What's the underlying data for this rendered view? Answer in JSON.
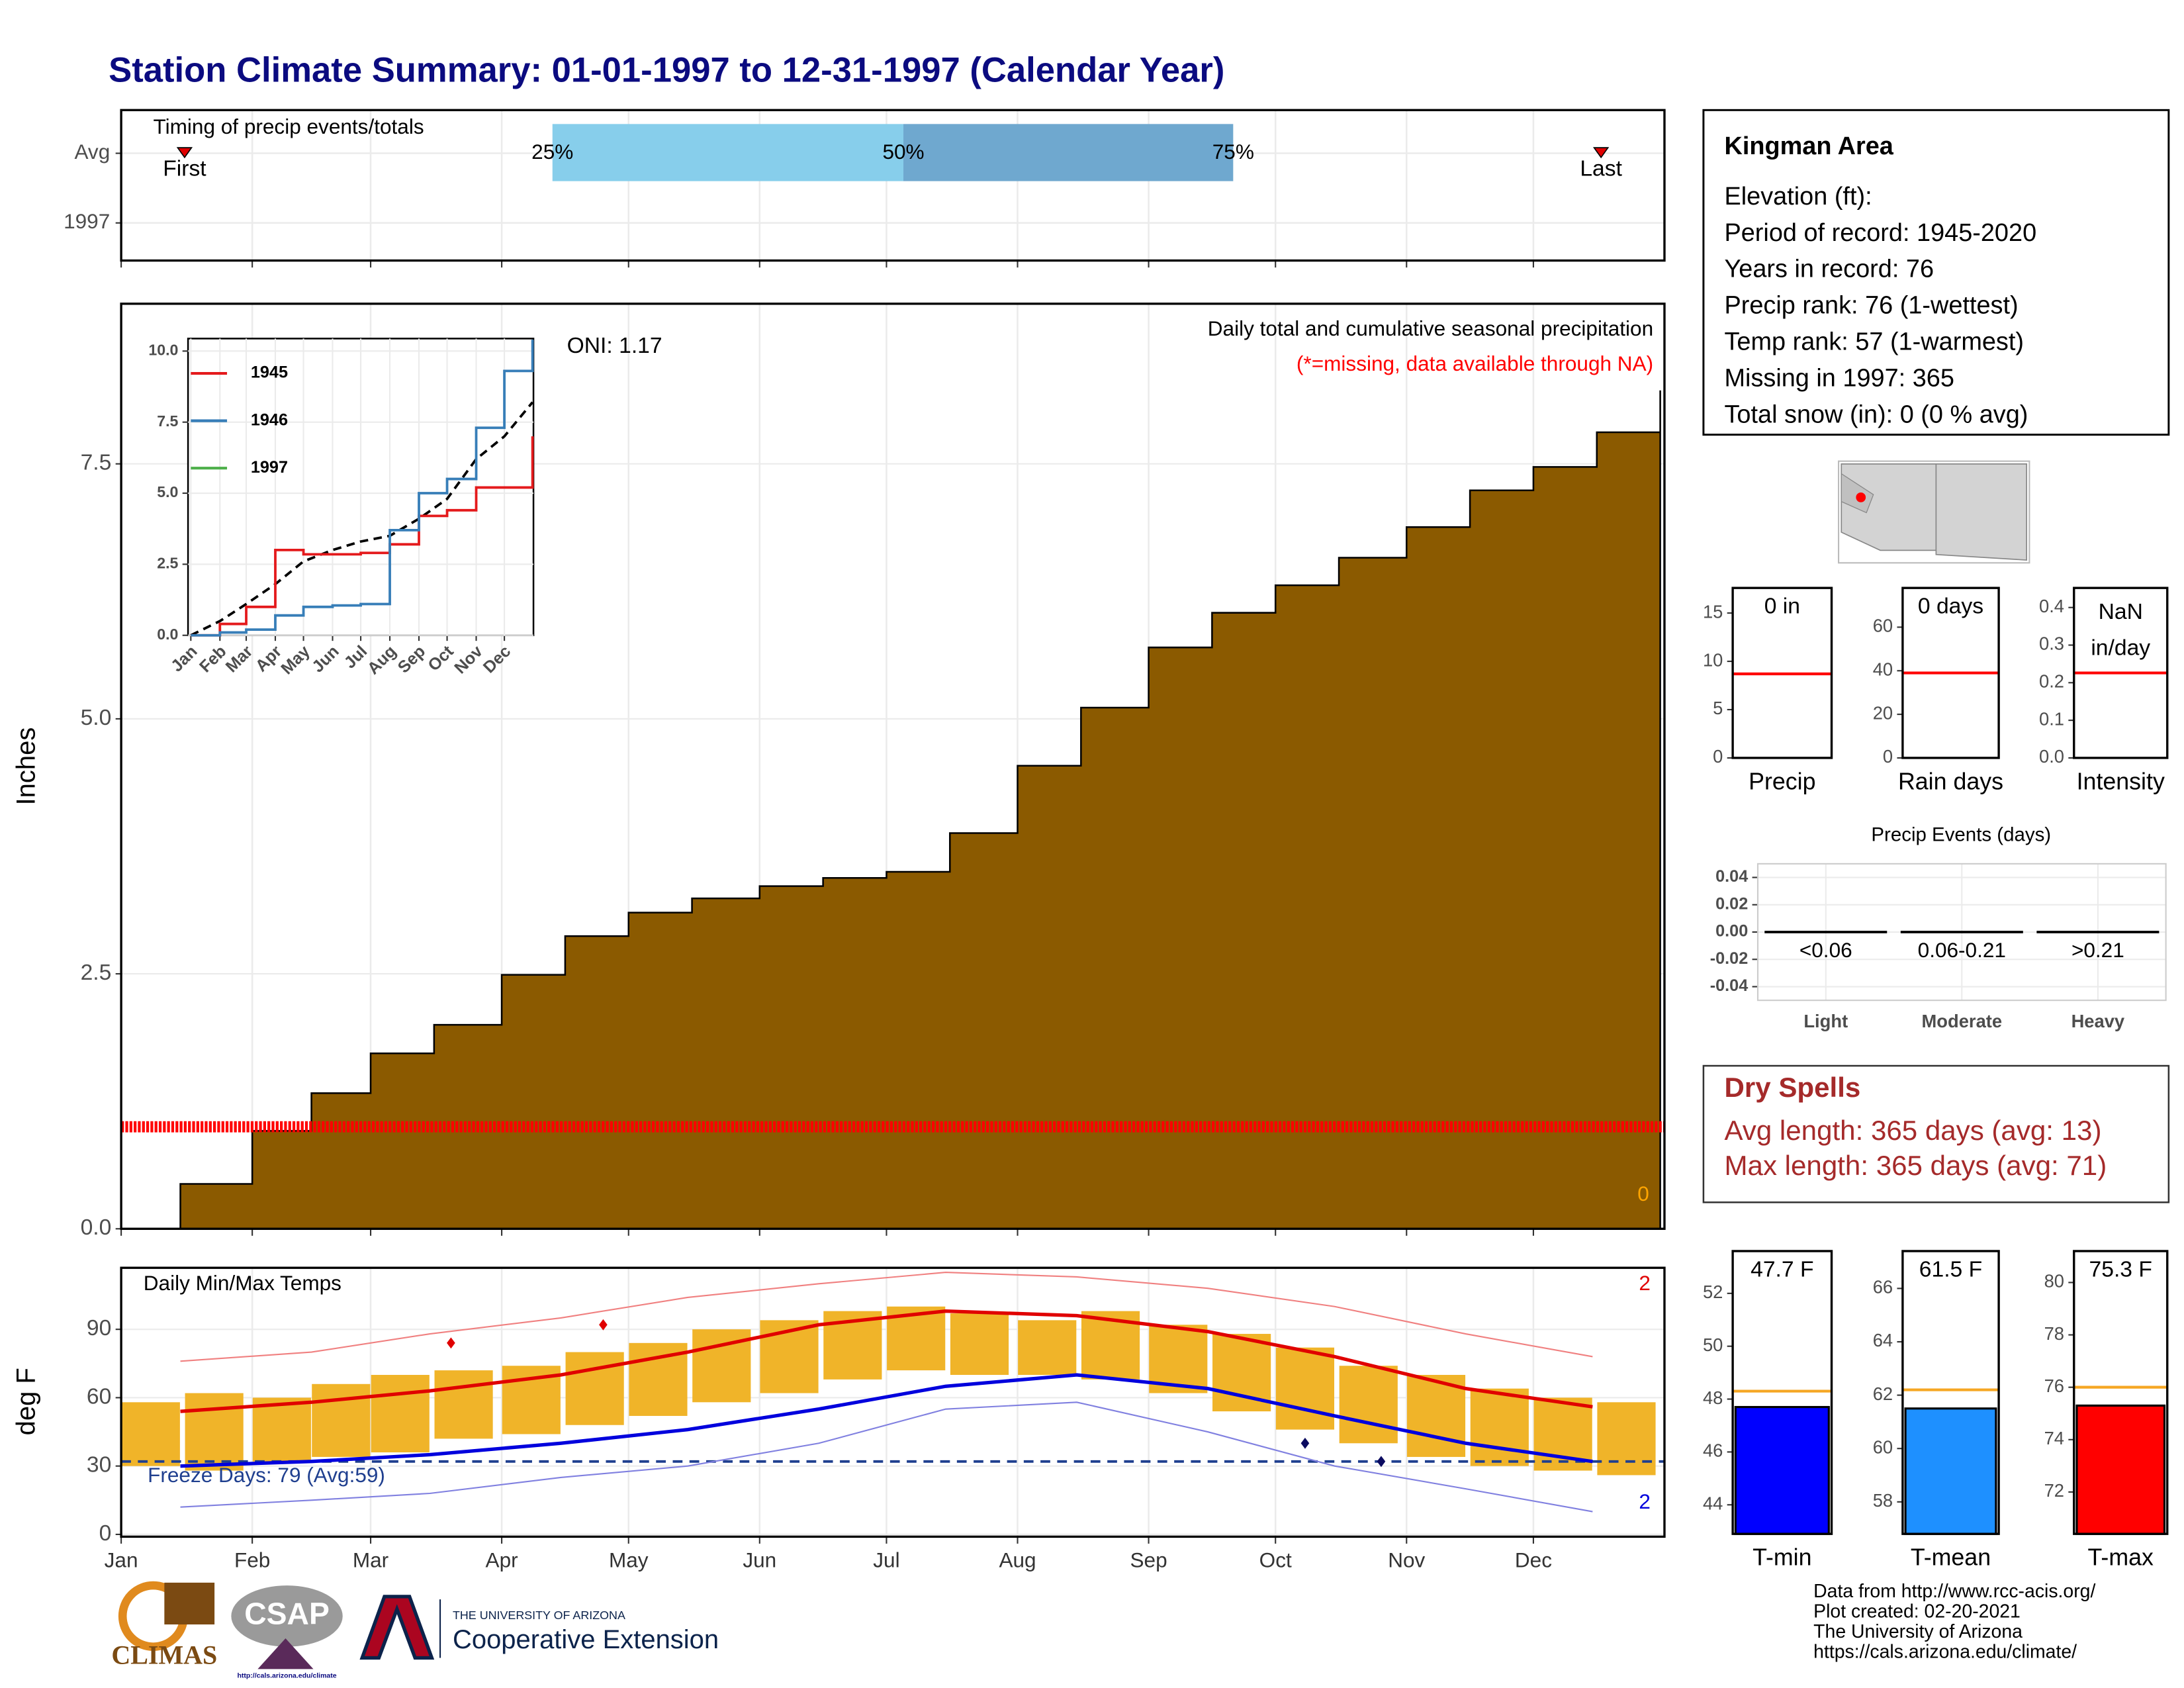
{
  "title": "Station Climate Summary: 01-01-1997 to 12-31-1997 (Calendar Year)",
  "chart_data": [
    {
      "type": "timing",
      "title": "Timing of precip events/totals",
      "categories": [
        "Avg",
        "1997"
      ],
      "quantiles": [
        {
          "label": "25%",
          "value": 103
        },
        {
          "label": "50%",
          "value": 186
        },
        {
          "label": "75%",
          "value": 264
        }
      ],
      "quantile_colors": [
        "#87ceeb",
        "#6fa8cf"
      ],
      "first": {
        "label": "First",
        "value": 16
      },
      "last": {
        "label": "Last",
        "value": 351
      },
      "marker_color": "#e00000"
    },
    {
      "type": "area",
      "subtitle": "Daily total and cumulative seasonal precipitation",
      "note": "(*=missing, data available through NA)",
      "oni": "ONI: 1.17",
      "y_label": "Inches",
      "x": [
        1,
        15,
        32,
        46,
        60,
        75,
        91,
        106,
        121,
        136,
        152,
        167,
        182,
        197,
        213,
        228,
        244,
        259,
        274,
        289,
        305,
        320,
        335,
        350,
        365
      ],
      "values": [
        0,
        0.44,
        0.96,
        1.33,
        1.72,
        2.0,
        2.49,
        2.87,
        3.1,
        3.24,
        3.36,
        3.44,
        3.5,
        3.88,
        4.54,
        5.11,
        5.7,
        6.04,
        6.31,
        6.58,
        6.88,
        7.24,
        7.47,
        7.81,
        8.22
      ],
      "color": "#8b5a00",
      "missing_level": 1.0,
      "missing_color": "#ff0000",
      "missing_count": 0,
      "ylim": [
        0,
        9.07
      ],
      "yticks": [
        {
          "value": 0,
          "label": "0.0"
        },
        2.5,
        {
          "value": 5,
          "label": "5.0"
        },
        7.5
      ],
      "grid": true
    },
    {
      "type": "line",
      "x": [
        1,
        32,
        60,
        91,
        121,
        152,
        182,
        213,
        244,
        274,
        305,
        335,
        365
      ],
      "series": [
        {
          "name": "1945",
          "color": "#e41a1c",
          "values": [
            0,
            0.4,
            1.0,
            3.0,
            2.85,
            2.85,
            2.9,
            3.2,
            4.2,
            4.4,
            5.2,
            5.2,
            7.0
          ]
        },
        {
          "name": "1946",
          "color": "#377eb8",
          "values": [
            0,
            0.1,
            0.2,
            0.7,
            1.0,
            1.05,
            1.1,
            3.7,
            5.0,
            5.5,
            7.3,
            9.3,
            10.4
          ]
        },
        {
          "name": "1997",
          "color": "#4daf4a",
          "values": [
            null,
            null,
            null,
            null,
            null,
            null,
            null,
            null,
            null,
            null,
            null,
            null,
            null
          ]
        }
      ],
      "average": [
        0,
        0.5,
        1.1,
        1.8,
        2.6,
        3.0,
        3.3,
        3.5,
        4.1,
        4.8,
        6.2,
        7.0,
        8.2
      ],
      "xlim": [
        1,
        366
      ],
      "xticks": [
        {
          "value": 1,
          "label": "Jan"
        },
        {
          "value": 32,
          "label": "Feb"
        },
        {
          "value": 60,
          "label": "Mar"
        },
        {
          "value": 91,
          "label": "Apr"
        },
        {
          "value": 121,
          "label": "May"
        },
        {
          "value": 152,
          "label": "Jun"
        },
        {
          "value": 182,
          "label": "Jul"
        },
        {
          "value": 213,
          "label": "Aug"
        },
        {
          "value": 244,
          "label": "Sep"
        },
        {
          "value": 274,
          "label": "Oct"
        },
        {
          "value": 305,
          "label": "Nov"
        },
        {
          "value": 335,
          "label": "Dec"
        }
      ],
      "ylim": [
        0,
        10.44
      ],
      "yticks": [
        {
          "value": 0,
          "label": "0.0"
        },
        2.5,
        {
          "value": 5,
          "label": "5.0"
        },
        7.5,
        {
          "value": 10,
          "label": "10.0"
        }
      ]
    },
    {
      "type": "temps",
      "title": "Daily Min/Max Temps",
      "y_label": "deg F",
      "freeze_label": "Freeze Days: 79 (Avg:59)",
      "freeze_level": 32,
      "record_high_count": 2,
      "record_low_count": 2,
      "x": [
        15,
        46,
        74,
        105,
        135,
        166,
        196,
        227,
        258,
        288,
        319,
        349
      ],
      "avg_max": {
        "color": "#e00000",
        "values": [
          54,
          58,
          63,
          70,
          80,
          92,
          98,
          96,
          89,
          78,
          64,
          56
        ]
      },
      "avg_min": {
        "color": "#0000dd",
        "values": [
          30,
          32,
          35,
          40,
          46,
          55,
          65,
          70,
          64,
          52,
          40,
          32
        ]
      },
      "record_max": {
        "color": "#f08080",
        "values": [
          76,
          80,
          88,
          95,
          104,
          110,
          115,
          113,
          108,
          100,
          88,
          78
        ]
      },
      "record_min": {
        "color": "#8080e0",
        "values": [
          12,
          15,
          18,
          25,
          30,
          40,
          55,
          58,
          45,
          30,
          20,
          10
        ]
      },
      "daily_x": [
        8,
        23,
        39,
        53,
        67,
        82,
        98,
        113,
        128,
        143,
        159,
        174,
        189,
        204,
        220,
        235,
        251,
        266,
        281,
        296,
        312,
        327,
        342,
        357
      ],
      "daily_max": [
        58,
        62,
        60,
        66,
        70,
        72,
        74,
        80,
        84,
        90,
        94,
        98,
        100,
        97,
        94,
        98,
        92,
        88,
        82,
        74,
        70,
        64,
        60,
        58
      ],
      "daily_min": [
        30,
        28,
        32,
        34,
        36,
        42,
        44,
        48,
        52,
        58,
        62,
        68,
        72,
        70,
        70,
        68,
        62,
        54,
        46,
        40,
        34,
        30,
        28,
        26
      ],
      "daily_color": "#f0b429",
      "record_high_points": {
        "x": [
          79,
          115
        ],
        "values": [
          84,
          92
        ]
      },
      "record_low_points": {
        "x": [
          281,
          299
        ],
        "values": [
          40,
          32
        ]
      },
      "xlim": [
        1,
        366
      ],
      "xticks": [
        {
          "value": 1,
          "label": "Jan"
        },
        {
          "value": 32,
          "label": "Feb"
        },
        {
          "value": 60,
          "label": "Mar"
        },
        {
          "value": 91,
          "label": "Apr"
        },
        {
          "value": 121,
          "label": "May"
        },
        {
          "value": 152,
          "label": "Jun"
        },
        {
          "value": 182,
          "label": "Jul"
        },
        {
          "value": 213,
          "label": "Aug"
        },
        {
          "value": 244,
          "label": "Sep"
        },
        {
          "value": 274,
          "label": "Oct"
        },
        {
          "value": 305,
          "label": "Nov"
        },
        {
          "value": 335,
          "label": "Dec"
        }
      ],
      "ylim": [
        -1,
        117
      ],
      "yticks": [
        0,
        30,
        60,
        90
      ],
      "grid": true
    },
    {
      "type": "avgbar",
      "categories": [
        "Precip"
      ],
      "values": [
        0
      ],
      "value_labels": [
        "0 in"
      ],
      "average": 8.7,
      "avg_color": "#ff0000",
      "ylim": [
        0,
        17.6
      ],
      "yticks": [
        0,
        5,
        10,
        15
      ]
    },
    {
      "type": "avgbar",
      "categories": [
        "Rain days"
      ],
      "values": [
        0
      ],
      "value_labels": [
        "0 days"
      ],
      "average": 39,
      "avg_color": "#ff0000",
      "ylim": [
        0,
        78
      ],
      "yticks": [
        0,
        20,
        40,
        60
      ]
    },
    {
      "type": "avgbar",
      "categories": [
        "Intensity"
      ],
      "values": [
        null
      ],
      "label_lines": [
        "NaN",
        "in/day"
      ],
      "average": 0.226,
      "avg_color": "#ff0000",
      "ylim": [
        0,
        0.452
      ],
      "yticks": [
        {
          "value": 0,
          "label": "0.0"
        },
        0.1,
        0.2,
        0.3,
        0.4
      ]
    },
    {
      "type": "events",
      "title": "Precip Events (days)",
      "categories": [
        "Light",
        "Moderate",
        "Heavy"
      ],
      "ranges": [
        "<0.06",
        "0.06-0.21",
        ">0.21"
      ],
      "values": [
        0,
        0,
        0
      ],
      "ylim": [
        -0.05,
        0.05
      ],
      "yticks": [
        0.04,
        0.02,
        {
          "value": 0,
          "label": "0.00"
        },
        -0.02,
        -0.04
      ],
      "grid": true
    },
    {
      "type": "avgbar",
      "categories": [
        "T-min"
      ],
      "values": [
        47.7
      ],
      "value_labels": [
        "47.7 F"
      ],
      "average": 48.3,
      "avg_color": "#f5a623",
      "color": "#0000ff",
      "ylim": [
        42.9,
        53.6
      ],
      "yticks": [
        44,
        46,
        48,
        50,
        52
      ]
    },
    {
      "type": "avgbar",
      "categories": [
        "T-mean"
      ],
      "values": [
        61.5
      ],
      "value_labels": [
        "61.5 F"
      ],
      "average": 62.2,
      "avg_color": "#f5a623",
      "color": "#1e90ff",
      "ylim": [
        56.8,
        67.4
      ],
      "yticks": [
        58,
        60,
        62,
        64,
        66
      ]
    },
    {
      "type": "avgbar",
      "categories": [
        "T-max"
      ],
      "values": [
        75.3
      ],
      "value_labels": [
        "75.3 F"
      ],
      "average": 76.0,
      "avg_color": "#f5a623",
      "color": "#ff0000",
      "ylim": [
        70.4,
        81.2
      ],
      "yticks": [
        72,
        74,
        76,
        78,
        80
      ]
    }
  ],
  "info": {
    "name": "Kingman Area",
    "lines": [
      "Elevation (ft):",
      "Period of record: 1945-2020",
      "Years in record: 76",
      "Precip rank: 76 (1-wettest)",
      "Temp rank: 57 (1-warmest)",
      "Missing in 1997: 365",
      "Total snow (in): 0 (0 % avg)"
    ]
  },
  "dry_spells": {
    "title": "Dry Spells",
    "lines": [
      "Avg length: 365 days (avg: 13)",
      "Max length: 365 days (avg: 71)"
    ]
  },
  "footer": [
    "Data from http://www.rcc-acis.org/",
    "Plot created: 02-20-2021",
    "The University of Arizona",
    "https://cals.arizona.edu/climate/"
  ],
  "logos": {
    "climas": "CLIMAS",
    "csap": "CSAP",
    "csap_url": "http://cals.arizona.edu/climate",
    "ua_small": "THE UNIVERSITY OF ARIZONA",
    "ua_large": "Cooperative Extension"
  }
}
